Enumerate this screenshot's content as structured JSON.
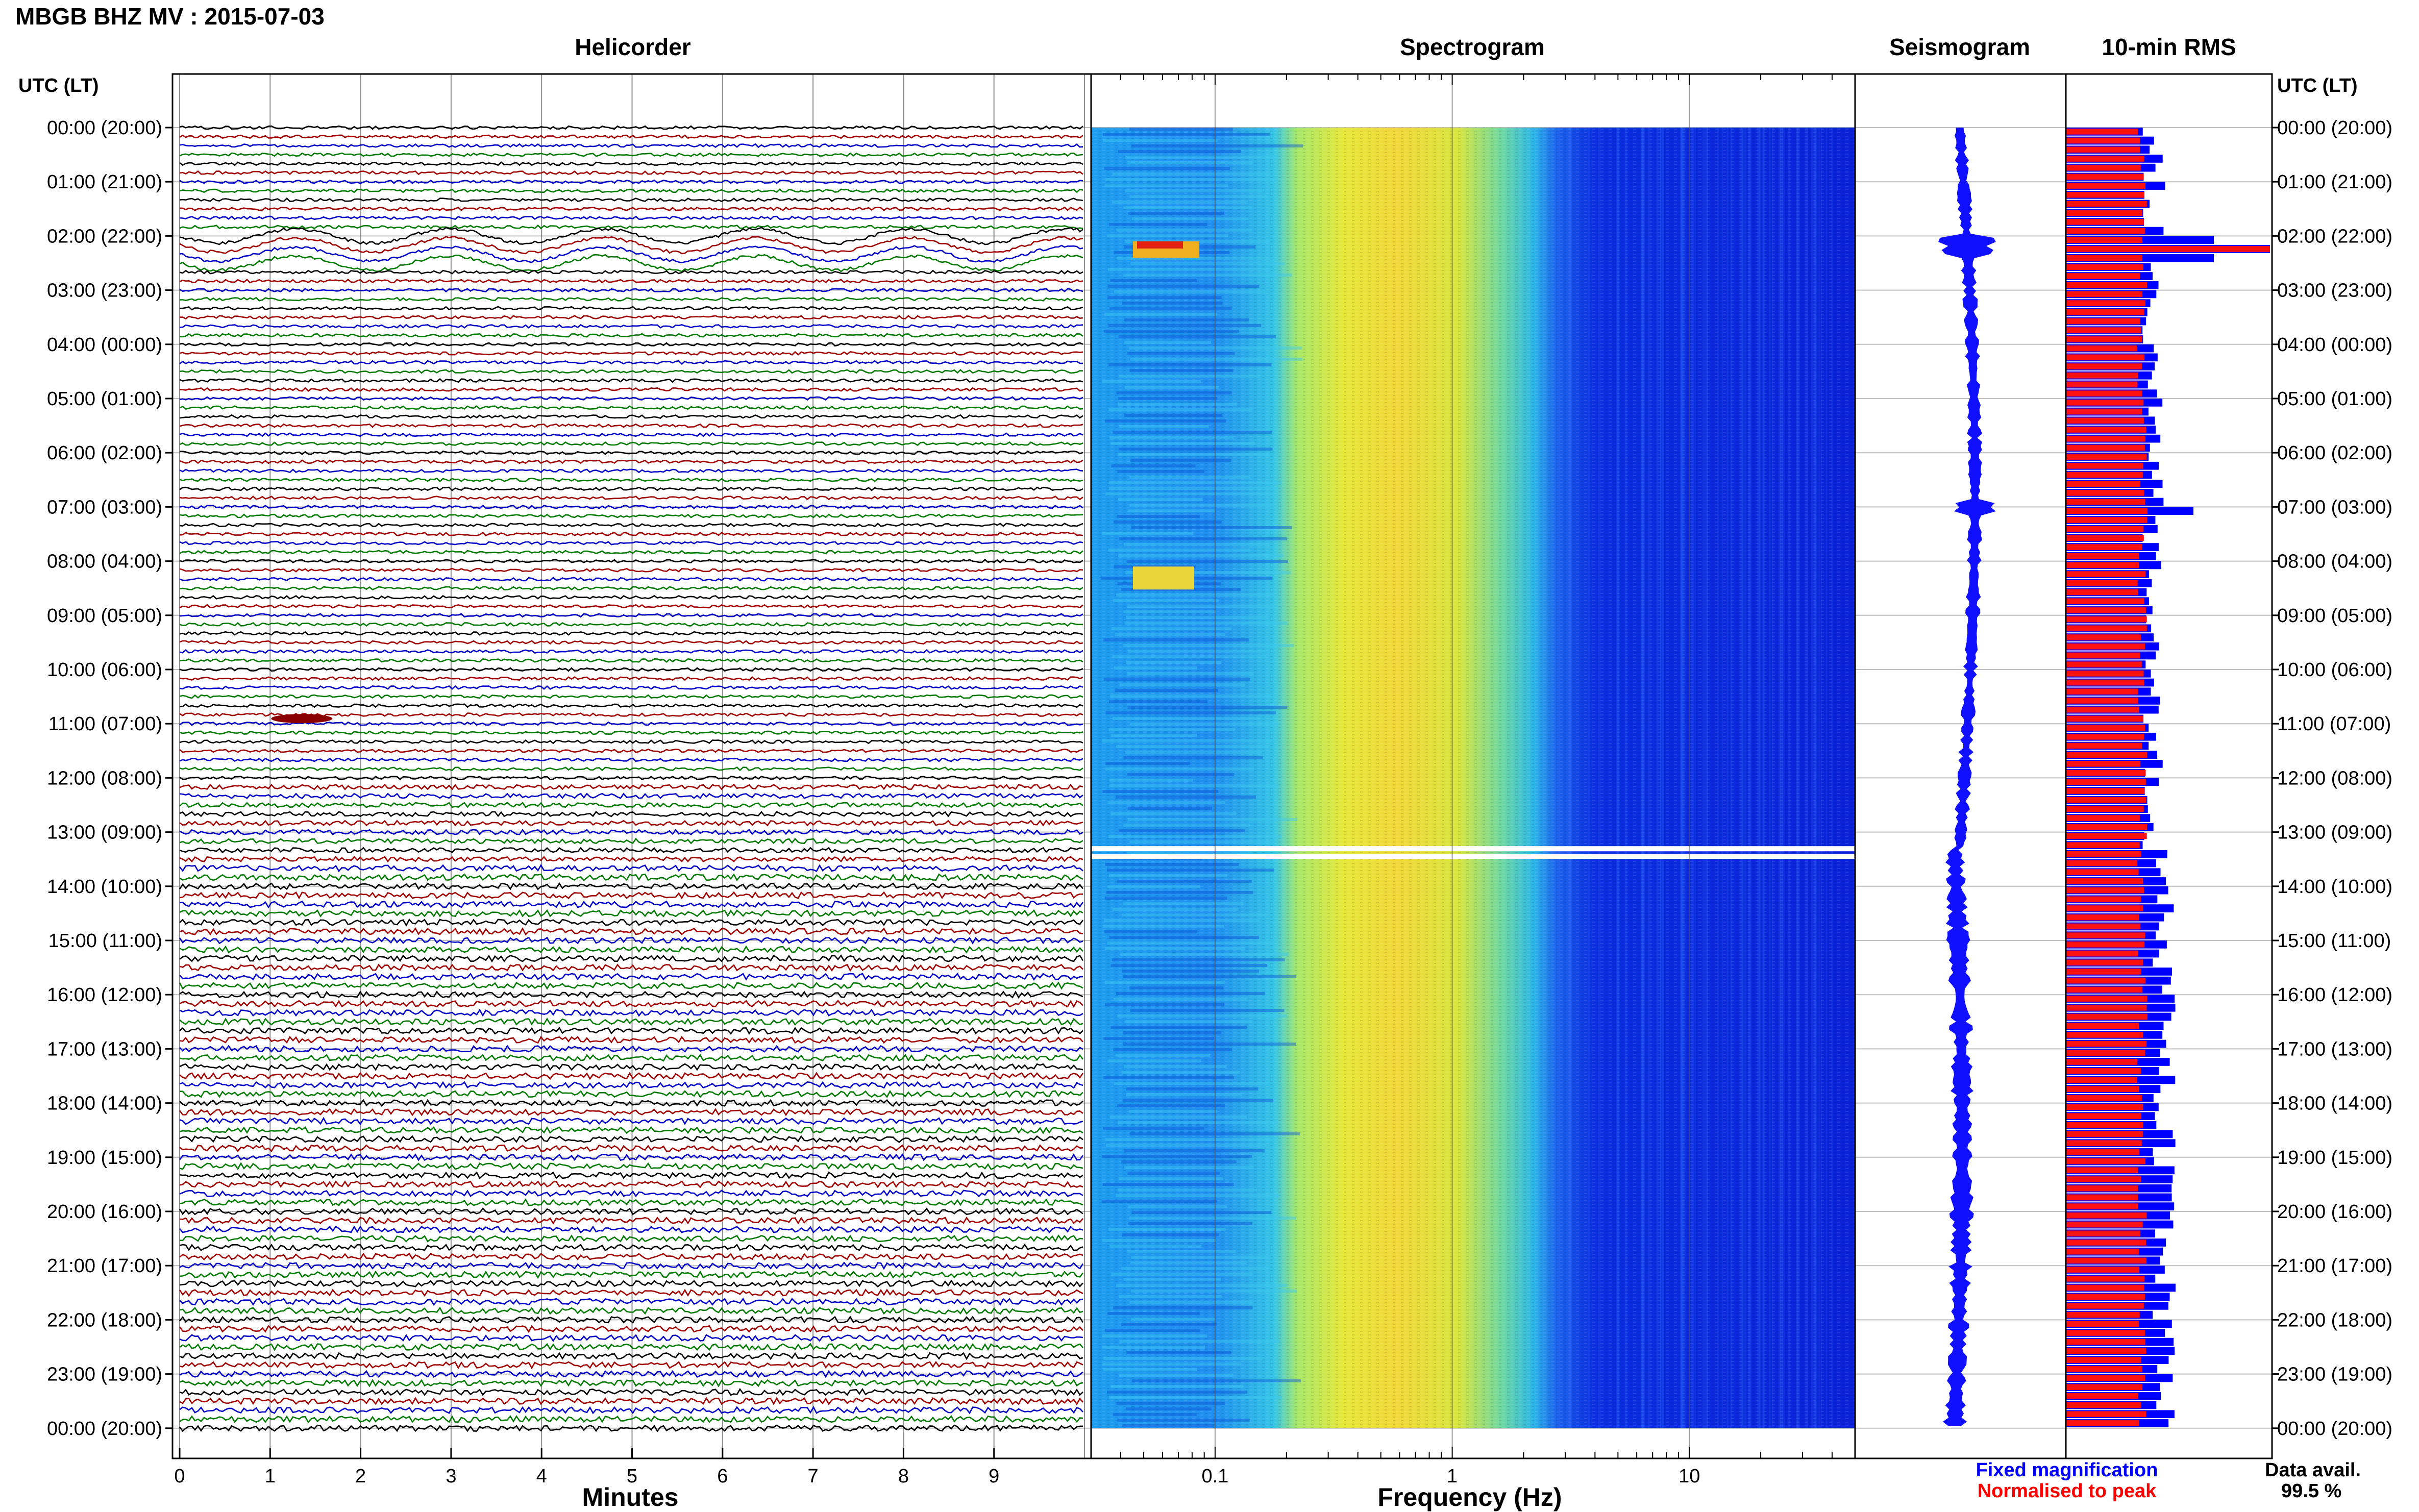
{
  "chart_data": {
    "type": "heatmap",
    "title": "MBGB BHZ MV : 2015-07-03",
    "time_axis": {
      "header": "UTC (LT)",
      "labels": [
        "00:00 (20:00)",
        "01:00 (21:00)",
        "02:00 (22:00)",
        "03:00 (23:00)",
        "04:00 (00:00)",
        "05:00 (01:00)",
        "06:00 (02:00)",
        "07:00 (03:00)",
        "08:00 (04:00)",
        "09:00 (05:00)",
        "10:00 (06:00)",
        "11:00 (07:00)",
        "12:00 (08:00)",
        "13:00 (09:00)",
        "14:00 (10:00)",
        "15:00 (11:00)",
        "16:00 (12:00)",
        "17:00 (13:00)",
        "18:00 (14:00)",
        "19:00 (15:00)",
        "20:00 (16:00)",
        "21:00 (17:00)",
        "22:00 (18:00)",
        "23:00 (19:00)",
        "00:00 (20:00)"
      ]
    },
    "panels": [
      {
        "id": "helicorder",
        "title": "Helicorder",
        "type": "line",
        "xlabel": "Minutes",
        "xticks": [
          "0",
          "1",
          "2",
          "3",
          "4",
          "5",
          "6",
          "7",
          "8",
          "9"
        ],
        "xlim": [
          0,
          10
        ],
        "trace_colors": [
          "#000000",
          "#a00000",
          "#0000c8",
          "#007a00"
        ],
        "traces_per_hour": 6
      },
      {
        "id": "spectrogram",
        "title": "Spectrogram",
        "type": "heatmap",
        "xlabel": "Frequency (Hz)",
        "xscale": "log",
        "xticks": [
          "0.1",
          "1",
          "10"
        ],
        "xlim": [
          0.03,
          50
        ]
      },
      {
        "id": "seismogram",
        "title": "Seismogram"
      },
      {
        "id": "rms",
        "title": "10-min RMS",
        "type": "bar",
        "orientation": "horizontal",
        "series": [
          {
            "name": "Fixed magnification",
            "color": "#0000ff"
          },
          {
            "name": "Normalised to peak",
            "color": "#ff0000"
          }
        ]
      }
    ],
    "events": [
      {
        "time": "02:10",
        "description": "large event, peak RMS"
      },
      {
        "time": "07:00",
        "description": "secondary RMS peak"
      },
      {
        "time": "13:20",
        "description": "data gap"
      }
    ],
    "footer": {
      "data_avail_label": "Data avail.",
      "data_avail_value": "99.5 %"
    }
  }
}
